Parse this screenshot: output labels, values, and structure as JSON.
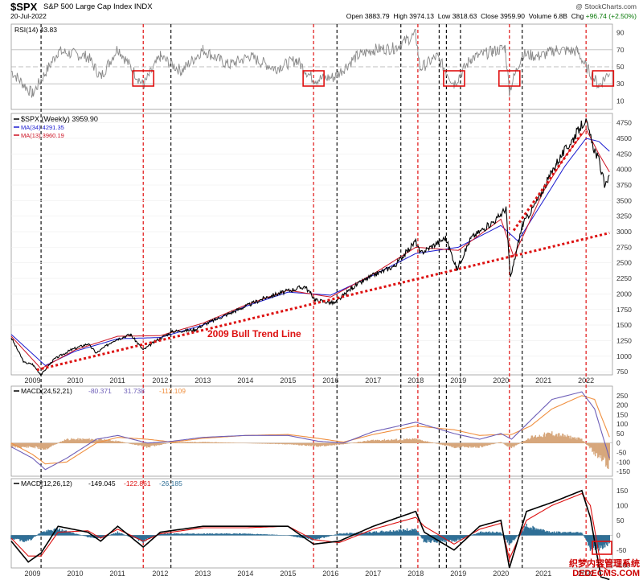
{
  "header": {
    "symbol": "$SPX",
    "name": "S&P 500 Large Cap Index",
    "exchange": "INDX",
    "date": "20-Jul-2022",
    "credit": "@ StockCharts.com",
    "open_label": "Open",
    "open": "3883.79",
    "high_label": "High",
    "high": "3974.13",
    "low_label": "Low",
    "low": "3818.63",
    "close_label": "Close",
    "close": "3959.90",
    "volume_label": "Volume",
    "volume": "6.8B",
    "chg_label": "Chg",
    "chg": "+96.74 (+2.50%)"
  },
  "watermark": {
    "line1": "织梦内容管理系统",
    "line2": "DEDECMS.COM"
  },
  "colors": {
    "price": "#000000",
    "ma34": "#1c1cd0",
    "ma13": "#cc1122",
    "trend": "#dd1111",
    "vline_red": "#e01010",
    "vline_black": "#111111",
    "macd_hist": "#d7a77c",
    "macd_line": "#6e5fb8",
    "macd_signal": "#f09040",
    "macd2_hist": "#2f6f96",
    "macd2_line": "#000000",
    "macd2_signal": "#dd1111",
    "rsi": "#888888"
  },
  "chart_data": [
    {
      "type": "line",
      "name": "rsi_panel",
      "label": "RSI(14)",
      "value": "43.83",
      "ylim": [
        0,
        100
      ],
      "yticks": [
        "90",
        "70",
        "50",
        "30",
        "10"
      ],
      "reference_lines": [
        70,
        50,
        30
      ],
      "x": [
        2008.5,
        2009.0,
        2009.6,
        2010.3,
        2010.6,
        2011.0,
        2011.6,
        2012.0,
        2012.5,
        2013.0,
        2013.6,
        2014.1,
        2014.7,
        2015.2,
        2015.6,
        2016.1,
        2016.6,
        2017.0,
        2017.5,
        2018.0,
        2018.1,
        2018.5,
        2018.9,
        2019.3,
        2019.8,
        2020.1,
        2020.2,
        2020.5,
        2020.9,
        2021.3,
        2021.8,
        2022.0,
        2022.3,
        2022.55
      ],
      "values": [
        45,
        18,
        68,
        62,
        38,
        72,
        28,
        62,
        45,
        70,
        52,
        62,
        48,
        58,
        35,
        38,
        62,
        70,
        72,
        88,
        48,
        62,
        30,
        60,
        68,
        72,
        22,
        65,
        62,
        70,
        68,
        50,
        28,
        43.83
      ],
      "signal_boxes": [
        "2011.6",
        "2015.6",
        "2018.9",
        "2020.2",
        "2022.4"
      ]
    },
    {
      "type": "line",
      "name": "price_panel",
      "title": "$SPX (Weekly) 3959.90",
      "legend": [
        "$SPX (Weekly) 3959.90",
        "MA(34) 4291.35",
        "MA(13) 3960.19"
      ],
      "ylim": [
        700,
        4900
      ],
      "yticks": [
        "4750",
        "4500",
        "4250",
        "4000",
        "3750",
        "3500",
        "3250",
        "3000",
        "2750",
        "2500",
        "2250",
        "2000",
        "1750",
        "1500",
        "1250",
        "1000",
        "750"
      ],
      "x_ticks": [
        "2009",
        "2010",
        "2011",
        "2012",
        "2013",
        "2014",
        "2015",
        "2016",
        "2017",
        "2018",
        "2019",
        "2020",
        "2021",
        "2022"
      ],
      "x": [
        2008.5,
        2008.8,
        2009.0,
        2009.2,
        2009.5,
        2009.9,
        2010.3,
        2010.5,
        2010.9,
        2011.3,
        2011.6,
        2011.9,
        2012.3,
        2012.8,
        2013.0,
        2013.5,
        2014.0,
        2014.5,
        2015.0,
        2015.4,
        2015.65,
        2016.1,
        2016.5,
        2017.0,
        2017.5,
        2018.0,
        2018.1,
        2018.7,
        2018.97,
        2019.3,
        2019.9,
        2020.12,
        2020.22,
        2020.5,
        2020.9,
        2021.3,
        2021.7,
        2021.98,
        2022.15,
        2022.3,
        2022.45,
        2022.55
      ],
      "values": [
        1300,
        900,
        870,
        700,
        950,
        1100,
        1200,
        1050,
        1250,
        1350,
        1100,
        1250,
        1400,
        1420,
        1500,
        1650,
        1800,
        1950,
        2050,
        2120,
        1900,
        1850,
        2100,
        2300,
        2450,
        2850,
        2650,
        2900,
        2400,
        2900,
        3200,
        3380,
        2240,
        3100,
        3550,
        4100,
        4500,
        4800,
        4400,
        4150,
        3700,
        3959.9
      ],
      "ma34": {
        "label": "MA(34)",
        "value": "4291.35",
        "x": [
          2008.5,
          2009.3,
          2010.0,
          2011.0,
          2012.0,
          2013.0,
          2014.0,
          2015.0,
          2016.0,
          2017.0,
          2018.0,
          2019.0,
          2020.0,
          2020.4,
          2021.0,
          2021.5,
          2022.0,
          2022.3,
          2022.55
        ],
        "values": [
          1350,
          850,
          1080,
          1280,
          1300,
          1500,
          1800,
          2030,
          1980,
          2300,
          2650,
          2750,
          3100,
          2850,
          3500,
          4050,
          4500,
          4450,
          4291.35
        ]
      },
      "ma13": {
        "label": "MA(13)",
        "value": "3960.19",
        "x": [
          2008.5,
          2009.2,
          2010.0,
          2011.0,
          2012.0,
          2013.0,
          2014.0,
          2015.0,
          2016.0,
          2017.0,
          2018.0,
          2019.0,
          2020.0,
          2020.3,
          2021.0,
          2021.5,
          2022.0,
          2022.3,
          2022.55
        ],
        "values": [
          1320,
          800,
          1100,
          1320,
          1330,
          1530,
          1820,
          2060,
          1950,
          2320,
          2750,
          2700,
          3200,
          2600,
          3650,
          4200,
          4650,
          4250,
          3960.19
        ]
      },
      "trend_lines": [
        {
          "label": "2009 Bull Trend Line",
          "from": [
            2009.1,
            780
          ],
          "to": [
            2022.55,
            2980
          ]
        },
        {
          "label": "",
          "from": [
            2020.3,
            3020
          ],
          "to": [
            2021.9,
            4580
          ]
        }
      ]
    },
    {
      "type": "bar",
      "name": "macd_long_panel",
      "label": "MACD(24,52,21)",
      "values_text": [
        "-80.371",
        "31.738",
        "-112.109"
      ],
      "ylim": [
        -175,
        300
      ],
      "yticks": [
        "250",
        "200",
        "150",
        "100",
        "50",
        "0",
        "-50",
        "-100",
        "-150"
      ],
      "x": [
        2008.5,
        2009.0,
        2009.3,
        2009.8,
        2010.5,
        2011.0,
        2011.7,
        2012.3,
        2013.0,
        2014.0,
        2015.0,
        2015.7,
        2016.3,
        2017.0,
        2018.0,
        2018.9,
        2019.5,
        2020.0,
        2020.25,
        2020.7,
        2021.2,
        2021.9,
        2022.2,
        2022.55
      ],
      "macd": [
        -20,
        -80,
        -140,
        -80,
        20,
        40,
        0,
        10,
        30,
        40,
        40,
        10,
        0,
        60,
        110,
        50,
        20,
        50,
        20,
        120,
        230,
        270,
        180,
        -80.371
      ],
      "signal": [
        0,
        -60,
        -110,
        -100,
        0,
        30,
        20,
        5,
        25,
        40,
        45,
        25,
        5,
        45,
        90,
        70,
        40,
        45,
        45,
        90,
        180,
        250,
        230,
        31.738
      ],
      "histogram": [
        -20,
        -20,
        -30,
        20,
        20,
        10,
        -20,
        5,
        5,
        0,
        -5,
        -15,
        -5,
        15,
        20,
        -20,
        -20,
        5,
        -25,
        30,
        50,
        20,
        -50,
        -112.109
      ]
    },
    {
      "type": "bar",
      "name": "macd_short_panel",
      "label": "MACD(12,26,12)",
      "values_text": [
        "-149.045",
        "-122.861",
        "-26.185"
      ],
      "ylim": [
        -110,
        190
      ],
      "yticks": [
        "150",
        "100",
        "50",
        "0",
        "-50",
        "-100"
      ],
      "x": [
        2008.5,
        2008.9,
        2009.2,
        2009.6,
        2010.3,
        2010.6,
        2011.0,
        2011.6,
        2012.0,
        2013.0,
        2014.0,
        2015.0,
        2015.6,
        2016.2,
        2017.0,
        2018.0,
        2018.2,
        2018.9,
        2019.5,
        2020.0,
        2020.2,
        2020.6,
        2021.2,
        2021.9,
        2022.1,
        2022.35,
        2022.55
      ],
      "macd": [
        -20,
        -90,
        -60,
        30,
        10,
        -20,
        30,
        -40,
        10,
        30,
        30,
        30,
        -30,
        -20,
        30,
        80,
        10,
        -50,
        30,
        50,
        -110,
        80,
        110,
        150,
        60,
        -140,
        -149.045
      ],
      "signal": [
        -10,
        -70,
        -70,
        10,
        15,
        -10,
        20,
        -20,
        5,
        25,
        25,
        30,
        -15,
        -25,
        20,
        60,
        30,
        -30,
        20,
        40,
        -80,
        50,
        100,
        140,
        100,
        -100,
        -122.861
      ],
      "histogram": [
        -10,
        -20,
        10,
        20,
        -5,
        -10,
        10,
        -20,
        5,
        5,
        5,
        0,
        -15,
        5,
        10,
        20,
        -20,
        -20,
        10,
        10,
        -30,
        30,
        10,
        10,
        -40,
        -40,
        -26.185
      ]
    }
  ],
  "vertical_lines": {
    "red": [
      2011.6,
      2015.6,
      2018.05,
      2020.2,
      2022.0
    ],
    "black": [
      2009.2,
      2012.25,
      2016.15,
      2017.65,
      2018.55,
      2018.72,
      2019.05,
      2020.5
    ]
  }
}
